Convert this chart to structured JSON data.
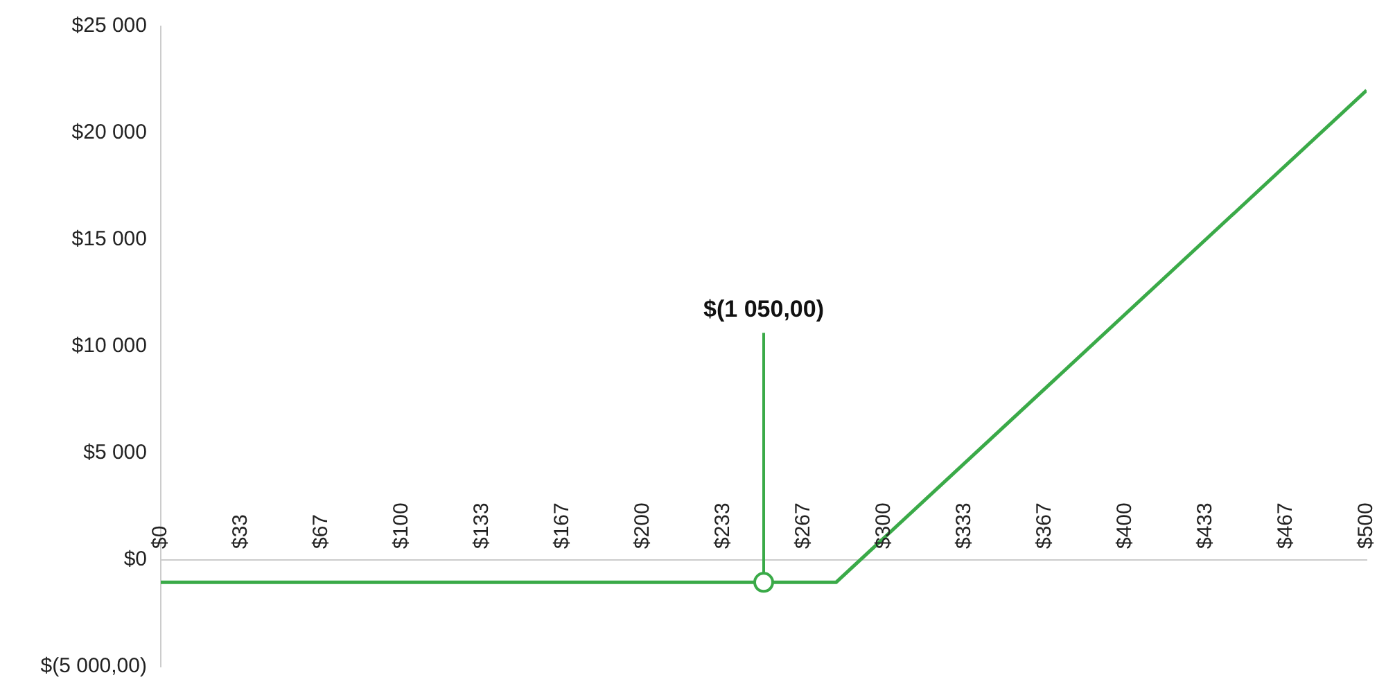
{
  "chart_data": {
    "type": "line",
    "x": [
      0,
      280,
      500
    ],
    "series": [
      {
        "color": "#3aaa48",
        "values": [
          -1050,
          -1050,
          22000
        ]
      }
    ],
    "xlim": [
      0,
      500
    ],
    "xticks": [
      {
        "value": 0,
        "label": "$0"
      },
      {
        "value": 33.33,
        "label": "$33"
      },
      {
        "value": 66.67,
        "label": "$67"
      },
      {
        "value": 100,
        "label": "$100"
      },
      {
        "value": 133.33,
        "label": "$133"
      },
      {
        "value": 166.67,
        "label": "$167"
      },
      {
        "value": 200,
        "label": "$200"
      },
      {
        "value": 233.33,
        "label": "$233"
      },
      {
        "value": 266.67,
        "label": "$267"
      },
      {
        "value": 300,
        "label": "$300"
      },
      {
        "value": 333.33,
        "label": "$333"
      },
      {
        "value": 366.67,
        "label": "$367"
      },
      {
        "value": 400,
        "label": "$400"
      },
      {
        "value": 433.33,
        "label": "$433"
      },
      {
        "value": 466.67,
        "label": "$467"
      },
      {
        "value": 500,
        "label": "$500"
      }
    ],
    "ylim": [
      -5000,
      25000
    ],
    "yticks": [
      {
        "value": -5000,
        "label": "$(5 000,00)"
      },
      {
        "value": 0,
        "label": "$0"
      },
      {
        "value": 5000,
        "label": "$5 000"
      },
      {
        "value": 10000,
        "label": "$10 000"
      },
      {
        "value": 15000,
        "label": "$15 000"
      },
      {
        "value": 20000,
        "label": "$20 000"
      },
      {
        "value": 25000,
        "label": "$25 000"
      }
    ],
    "annotations": [
      {
        "text": "$(1 050,00)",
        "x": 250,
        "y": -1050
      }
    ],
    "grid": false,
    "legend": false,
    "marker": "none",
    "line_style": "solid"
  }
}
